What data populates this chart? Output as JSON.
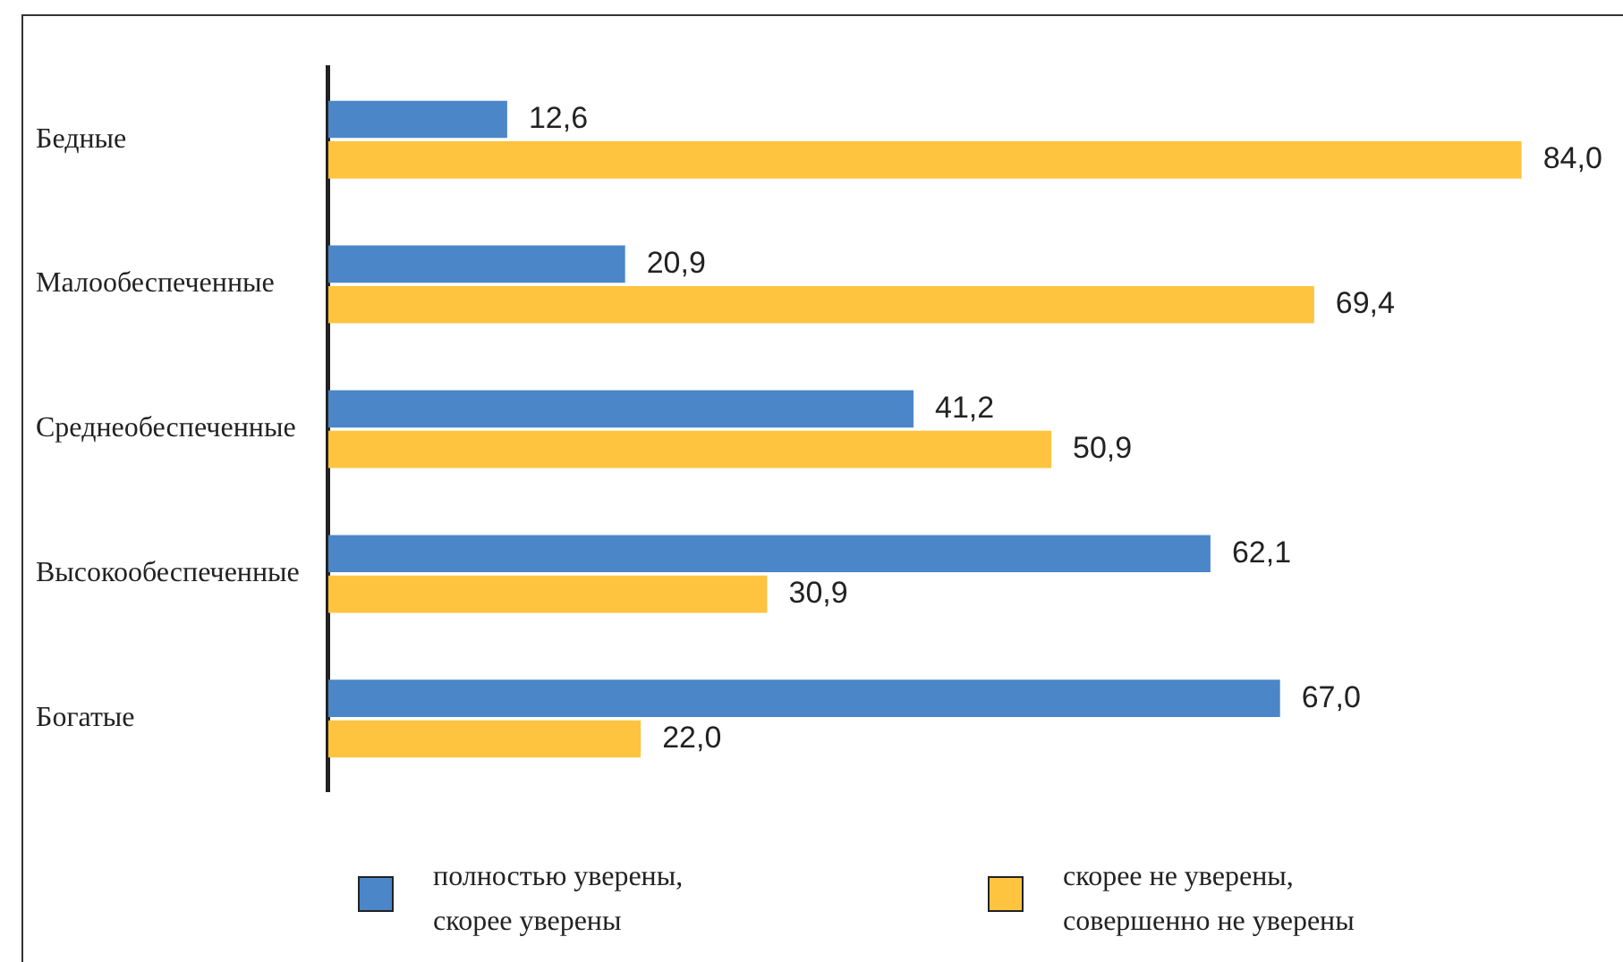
{
  "chart_data": {
    "type": "bar",
    "orientation": "horizontal",
    "categories": [
      "Бедные",
      "Малообеспеченные",
      "Среднеобеспеченные",
      "Высокообеспеченные",
      "Богатые"
    ],
    "series": [
      {
        "name": "полностью уверены, скорее уверены",
        "color": "#4a86c8",
        "values": [
          12.6,
          20.9,
          41.2,
          62.1,
          67.0
        ],
        "value_labels": [
          "12,6",
          "20,9",
          "41,2",
          "62,1",
          "67,0"
        ]
      },
      {
        "name": "скорее не уверены, совершенно не уверены",
        "color": "#fec440",
        "values": [
          84.0,
          69.4,
          50.9,
          30.9,
          22.0
        ],
        "value_labels": [
          "84,0",
          "69,4",
          "50,9",
          "30,9",
          "22,0"
        ]
      }
    ],
    "legend": "bottom"
  }
}
